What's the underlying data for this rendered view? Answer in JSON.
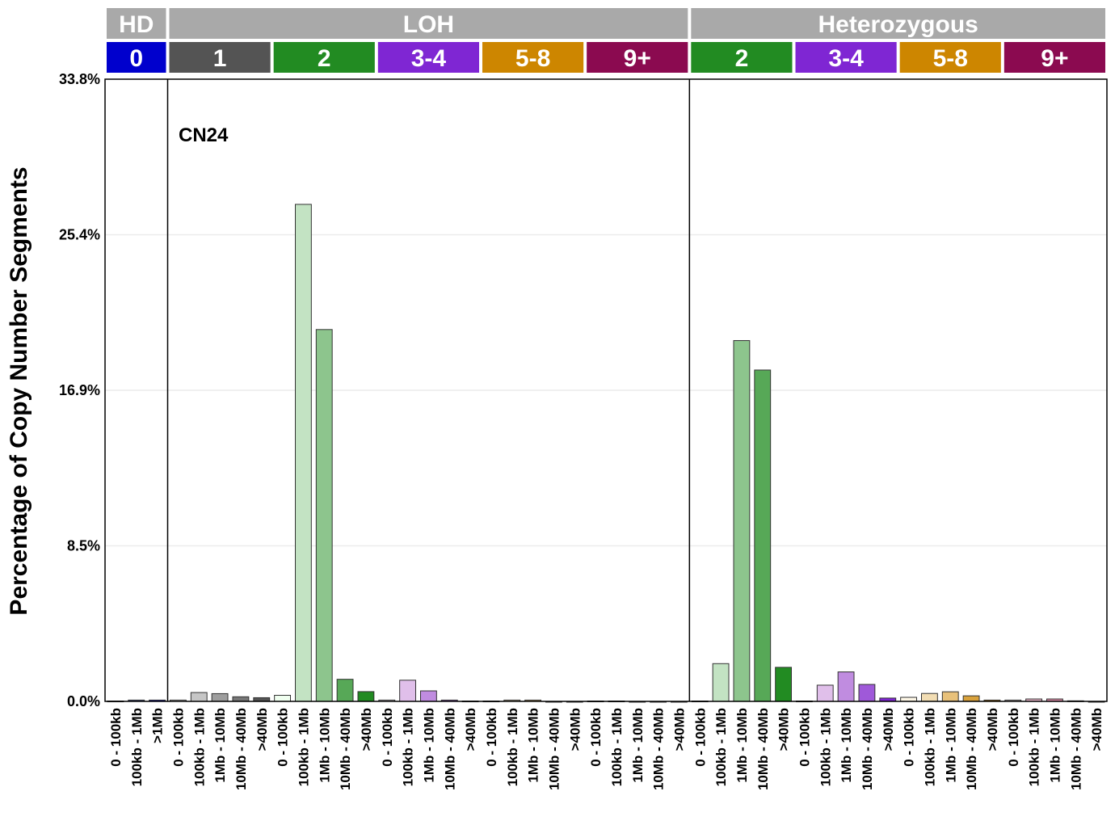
{
  "chart_data": {
    "type": "bar",
    "ylabel": "Percentage of Copy Number Segments",
    "ylim": [
      0,
      33.8
    ],
    "yticks": [
      "0.0%",
      "8.5%",
      "16.9%",
      "25.4%",
      "33.8%"
    ],
    "ytick_values": [
      0,
      8.45,
      16.9,
      25.35,
      33.8
    ],
    "grid": true,
    "annotation": "CN24",
    "groups": [
      {
        "label": "HD",
        "color": "#A9A9A9"
      },
      {
        "label": "LOH",
        "color": "#A9A9A9"
      },
      {
        "label": "Heterozygous",
        "color": "#A9A9A9"
      }
    ],
    "cn_states": [
      {
        "group": 0,
        "label": "0",
        "color": "#0000CD",
        "sizes": [
          "0 - 100kb",
          "100kb - 1Mb",
          ">1Mb"
        ],
        "values": [
          0.02,
          0.07,
          0.07
        ],
        "bar_colors": [
          "#F0F8FF",
          "#4A5DA5",
          "#0000CD"
        ]
      },
      {
        "group": 1,
        "label": "1",
        "color": "#545454",
        "sizes": [
          "0 - 100kb",
          "100kb - 1Mb",
          "1Mb - 10Mb",
          "10Mb - 40Mb",
          ">40Mb"
        ],
        "values": [
          0.07,
          0.48,
          0.42,
          0.25,
          0.2
        ],
        "bar_colors": [
          "#F0F0F0",
          "#C6C6C6",
          "#9E9E9E",
          "#777777",
          "#545454"
        ]
      },
      {
        "group": 1,
        "label": "2",
        "color": "#228B22",
        "sizes": [
          "0 - 100kb",
          "100kb - 1Mb",
          "1Mb - 10Mb",
          "10Mb - 40Mb",
          ">40Mb"
        ],
        "values": [
          0.33,
          27.0,
          20.2,
          1.2,
          0.53
        ],
        "bar_colors": [
          "#F0FFF0",
          "#C3E3C3",
          "#8DC58D",
          "#57A857",
          "#228B22"
        ]
      },
      {
        "group": 1,
        "label": "3-4",
        "color": "#7F26D3",
        "sizes": [
          "0 - 100kb",
          "100kb - 1Mb",
          "1Mb - 10Mb",
          "10Mb - 40Mb",
          ">40Mb"
        ],
        "values": [
          0.07,
          1.15,
          0.57,
          0.07,
          0.02
        ],
        "bar_colors": [
          "#F3ECFA",
          "#E0BFEA",
          "#C08CE0",
          "#9F59D9",
          "#7F26D3"
        ]
      },
      {
        "group": 1,
        "label": "5-8",
        "color": "#CD8600",
        "sizes": [
          "0 - 100kb",
          "100kb - 1Mb",
          "1Mb - 10Mb",
          "10Mb - 40Mb",
          ">40Mb"
        ],
        "values": [
          0.02,
          0.07,
          0.07,
          0,
          0
        ],
        "bar_colors": [
          "#FFF8E7",
          "#F2DDB3",
          "#E8C17A",
          "#D9A23C",
          "#CD8600"
        ]
      },
      {
        "group": 1,
        "label": "9+",
        "color": "#8B0A50",
        "sizes": [
          "0 - 100kb",
          "100kb - 1Mb",
          "1Mb - 10Mb",
          "10Mb - 40Mb",
          ">40Mb"
        ],
        "values": [
          0.02,
          0.02,
          0,
          0,
          0
        ],
        "bar_colors": [
          "#F7E9EF",
          "#E8B5C8",
          "#D98AA5",
          "#C55E84",
          "#8B0A50"
        ]
      },
      {
        "group": 2,
        "label": "2",
        "color": "#228B22",
        "sizes": [
          "0 - 100kb",
          "100kb - 1Mb",
          "1Mb - 10Mb",
          "10Mb - 40Mb",
          ">40Mb"
        ],
        "values": [
          0.02,
          2.05,
          19.6,
          18.0,
          1.85
        ],
        "bar_colors": [
          "#F0FFF0",
          "#C3E3C3",
          "#8DC58D",
          "#57A857",
          "#228B22"
        ]
      },
      {
        "group": 2,
        "label": "3-4",
        "color": "#7F26D3",
        "sizes": [
          "0 - 100kb",
          "100kb - 1Mb",
          "1Mb - 10Mb",
          "10Mb - 40Mb",
          ">40Mb"
        ],
        "values": [
          0.02,
          0.88,
          1.6,
          0.92,
          0.18
        ],
        "bar_colors": [
          "#F3ECFA",
          "#E0BFEA",
          "#C08CE0",
          "#9F59D9",
          "#7F26D3"
        ]
      },
      {
        "group": 2,
        "label": "5-8",
        "color": "#CD8600",
        "sizes": [
          "0 - 100kb",
          "100kb - 1Mb",
          "1Mb - 10Mb",
          "10Mb - 40Mb",
          ">40Mb"
        ],
        "values": [
          0.22,
          0.43,
          0.52,
          0.3,
          0.07
        ],
        "bar_colors": [
          "#FFF8E7",
          "#F2DDB3",
          "#E8C17A",
          "#D9A23C",
          "#CD8600"
        ]
      },
      {
        "group": 2,
        "label": "9+",
        "color": "#8B0A50",
        "sizes": [
          "0 - 100kb",
          "100kb - 1Mb",
          "1Mb - 10Mb",
          "10Mb - 40Mb",
          ">40Mb"
        ],
        "values": [
          0.07,
          0.13,
          0.13,
          0.03,
          0
        ],
        "bar_colors": [
          "#F7E9EF",
          "#E8B5C8",
          "#D98AA5",
          "#C55E84",
          "#8B0A50"
        ]
      }
    ]
  }
}
